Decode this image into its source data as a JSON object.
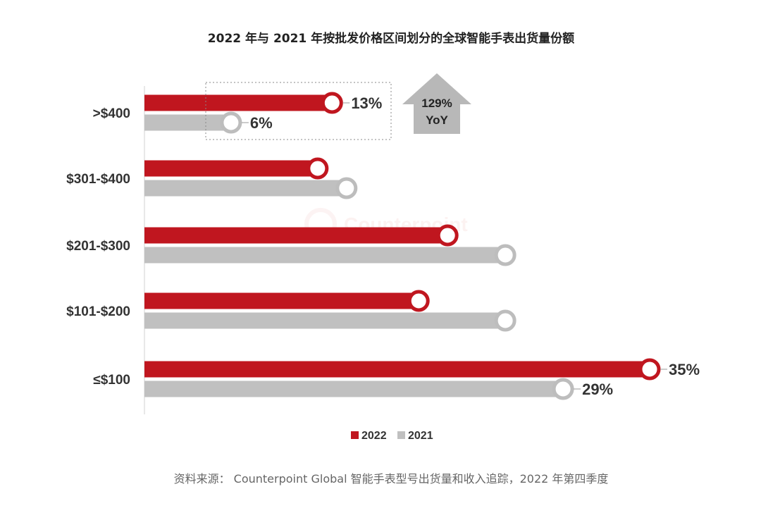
{
  "chart_data": {
    "type": "bar",
    "orientation": "horizontal",
    "title": "2022 年与 2021 年按批发价格区间划分的全球智能手表出货量份额",
    "categories": [
      ">$400",
      "$301-$400",
      "$201-$300",
      "$101-$200",
      "≤$100"
    ],
    "series": [
      {
        "name": "2022",
        "color": "#c0161f",
        "values": [
          13,
          12,
          21,
          19,
          35
        ],
        "labels": [
          "13%",
          "",
          "",
          "",
          "35%"
        ]
      },
      {
        "name": "2021",
        "color": "#c0c0c0",
        "values": [
          6,
          14,
          25,
          25,
          29
        ],
        "labels": [
          "6%",
          "",
          "",
          "",
          "29%"
        ]
      }
    ],
    "xlim": [
      0,
      35
    ],
    "grid": false,
    "legend_position": "bottom",
    "annotation": {
      "line1": "129%",
      "line2": "YoY",
      "shape": "up-arrow"
    },
    "watermark": "Counterpoint"
  },
  "source": "资料来源： Counterpoint Global 智能手表型号出货量和收入追踪，2022 年第四季度"
}
